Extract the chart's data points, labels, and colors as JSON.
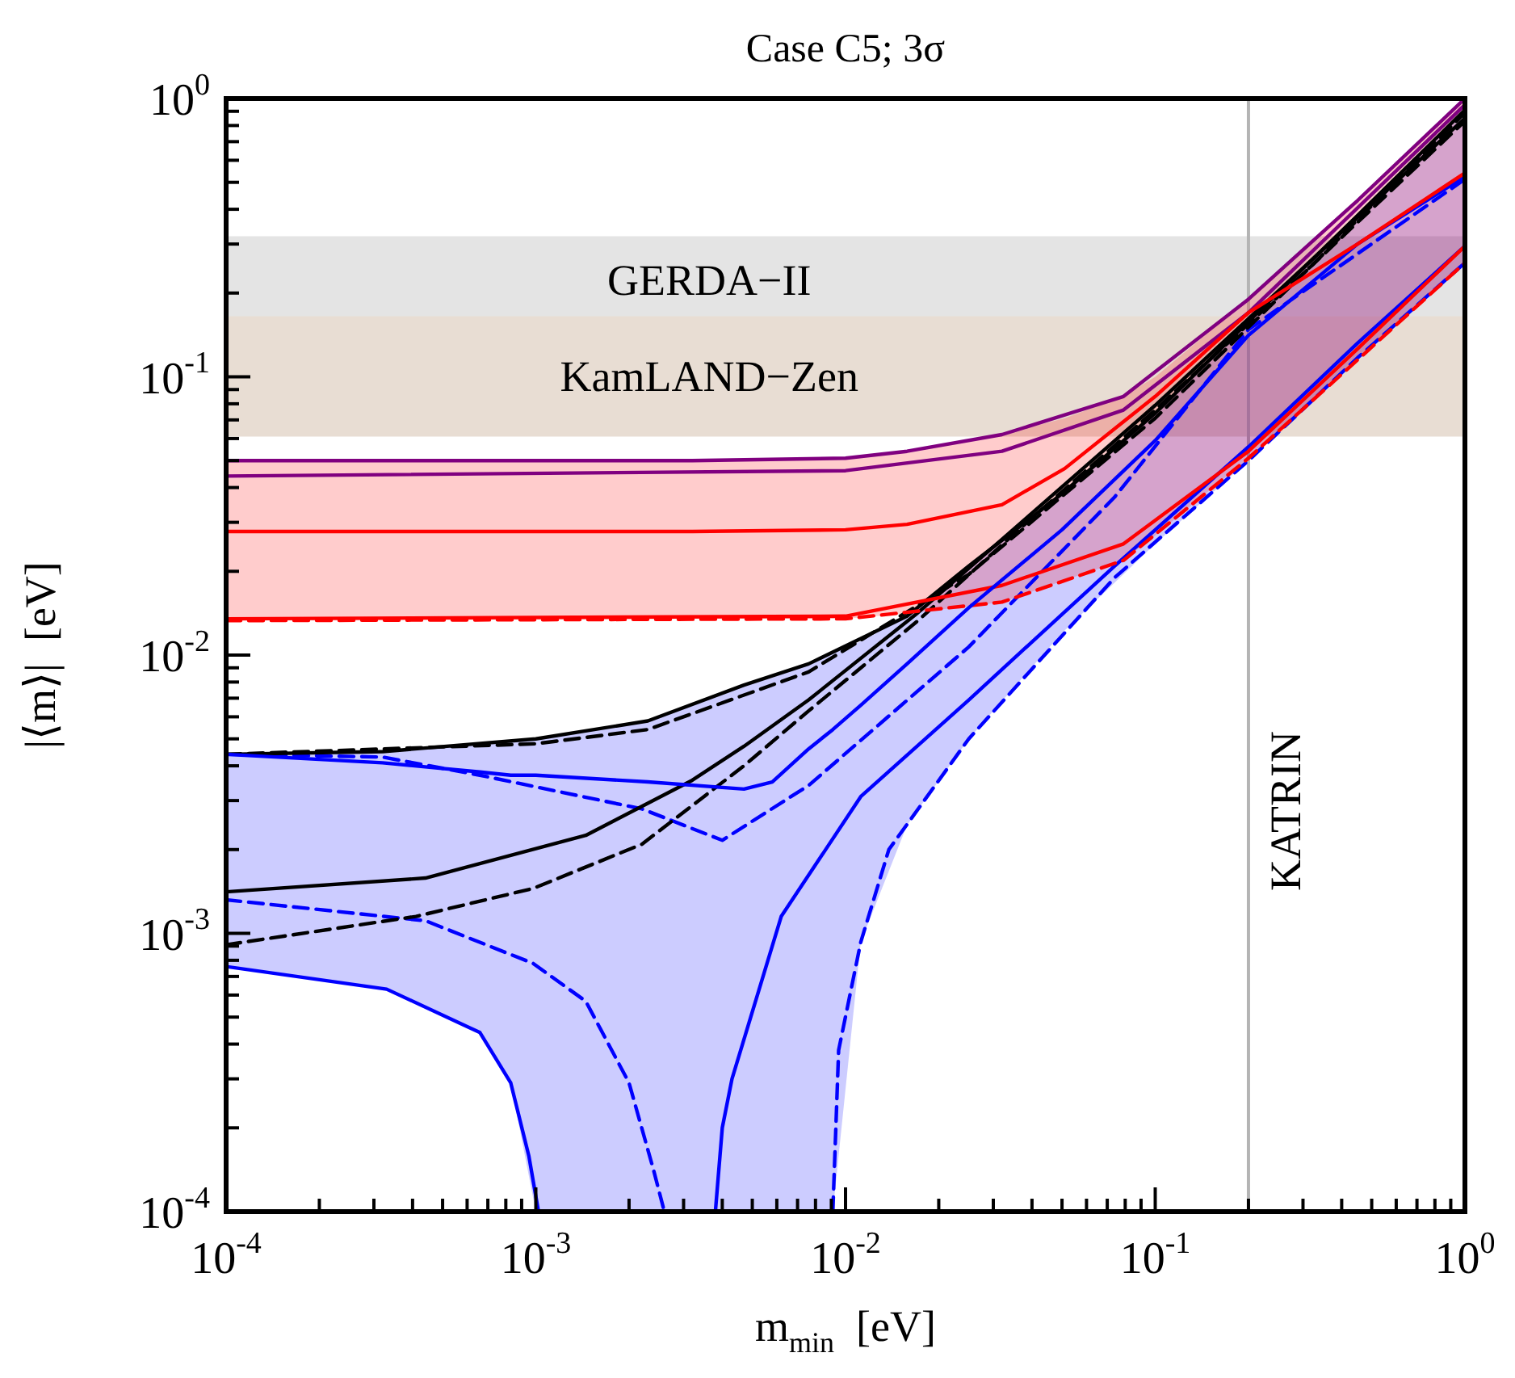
{
  "chart_data": {
    "type": "line",
    "title": "Case C5; 3σ",
    "xlabel": "m$_{min}$  [eV]",
    "ylabel": "|⟨m⟩|  [eV]",
    "log": "xy",
    "grid": false,
    "legend": false,
    "xlim": [
      0.0001,
      1
    ],
    "ylim": [
      0.0001,
      1
    ],
    "xticks": [
      {
        "value": 0.0001,
        "label": "10$^{-4}$"
      },
      {
        "value": 0.0002,
        "label": null
      },
      {
        "value": 0.0003,
        "label": null
      },
      {
        "value": 0.0004,
        "label": null
      },
      {
        "value": 0.0005,
        "label": null
      },
      {
        "value": 0.0006,
        "label": null
      },
      {
        "value": 0.0007,
        "label": null
      },
      {
        "value": 0.0008,
        "label": null
      },
      {
        "value": 0.0009,
        "label": null
      },
      {
        "value": 0.001,
        "label": "10$^{-3}$"
      },
      {
        "value": 0.002,
        "label": null
      },
      {
        "value": 0.003,
        "label": null
      },
      {
        "value": 0.004,
        "label": null
      },
      {
        "value": 0.005,
        "label": null
      },
      {
        "value": 0.006,
        "label": null
      },
      {
        "value": 0.007,
        "label": null
      },
      {
        "value": 0.008,
        "label": null
      },
      {
        "value": 0.009,
        "label": null
      },
      {
        "value": 0.01,
        "label": "10$^{-2}$"
      },
      {
        "value": 0.02,
        "label": null
      },
      {
        "value": 0.03,
        "label": null
      },
      {
        "value": 0.04,
        "label": null
      },
      {
        "value": 0.05,
        "label": null
      },
      {
        "value": 0.06,
        "label": null
      },
      {
        "value": 0.07,
        "label": null
      },
      {
        "value": 0.08,
        "label": null
      },
      {
        "value": 0.09,
        "label": null
      },
      {
        "value": 0.1,
        "label": "10$^{-1}$"
      },
      {
        "value": 0.2,
        "label": null
      },
      {
        "value": 0.3,
        "label": null
      },
      {
        "value": 0.4,
        "label": null
      },
      {
        "value": 0.5,
        "label": null
      },
      {
        "value": 0.6,
        "label": null
      },
      {
        "value": 0.7,
        "label": null
      },
      {
        "value": 0.8,
        "label": null
      },
      {
        "value": 0.9,
        "label": null
      },
      {
        "value": 1,
        "label": "10$^{0}$"
      }
    ],
    "yticks": [
      {
        "value": 0.0001,
        "label": "10$^{-4}$"
      },
      {
        "value": 0.0002,
        "label": null
      },
      {
        "value": 0.0003,
        "label": null
      },
      {
        "value": 0.0004,
        "label": null
      },
      {
        "value": 0.0005,
        "label": null
      },
      {
        "value": 0.0006,
        "label": null
      },
      {
        "value": 0.0007,
        "label": null
      },
      {
        "value": 0.0008,
        "label": null
      },
      {
        "value": 0.0009,
        "label": null
      },
      {
        "value": 0.001,
        "label": "10$^{-3}$"
      },
      {
        "value": 0.002,
        "label": null
      },
      {
        "value": 0.003,
        "label": null
      },
      {
        "value": 0.004,
        "label": null
      },
      {
        "value": 0.005,
        "label": null
      },
      {
        "value": 0.006,
        "label": null
      },
      {
        "value": 0.007,
        "label": null
      },
      {
        "value": 0.008,
        "label": null
      },
      {
        "value": 0.009,
        "label": null
      },
      {
        "value": 0.01,
        "label": "10$^{-2}$"
      },
      {
        "value": 0.02,
        "label": null
      },
      {
        "value": 0.03,
        "label": null
      },
      {
        "value": 0.04,
        "label": null
      },
      {
        "value": 0.05,
        "label": null
      },
      {
        "value": 0.06,
        "label": null
      },
      {
        "value": 0.07,
        "label": null
      },
      {
        "value": 0.08,
        "label": null
      },
      {
        "value": 0.09,
        "label": null
      },
      {
        "value": 0.1,
        "label": "10$^{-1}$"
      },
      {
        "value": 0.2,
        "label": null
      },
      {
        "value": 0.3,
        "label": null
      },
      {
        "value": 0.4,
        "label": null
      },
      {
        "value": 0.5,
        "label": null
      },
      {
        "value": 0.6,
        "label": null
      },
      {
        "value": 0.7,
        "label": null
      },
      {
        "value": 0.8,
        "label": null
      },
      {
        "value": 0.9,
        "label": null
      },
      {
        "value": 1,
        "label": "10$^{0}$"
      }
    ],
    "bands": [
      {
        "axis": "y",
        "from": 0.154,
        "to": 0.32,
        "label": "GERDA−II",
        "color": "#e4e4e4"
      },
      {
        "axis": "y",
        "from": 0.061,
        "to": 0.165,
        "label": "KamLAND−Zen",
        "color": "#e8ddd3"
      }
    ],
    "ref_lines": [
      {
        "axis": "x",
        "value": 0.2,
        "label": "KATRIN",
        "color": "#b4b4b4"
      }
    ],
    "series": [
      {
        "color": "#ff0000",
        "line_style": "solid",
        "x": [
          0.0001,
          0.0032,
          0.01,
          0.0158,
          0.032,
          0.051,
          0.079,
          0.1,
          0.2,
          0.45,
          1
        ],
        "values": [
          0.0278,
          0.0278,
          0.0282,
          0.0295,
          0.0347,
          0.0468,
          0.069,
          0.085,
          0.17,
          0.3,
          0.54
        ],
        "upper": [
          0.05,
          0.05,
          0.051,
          0.054,
          0.062,
          0.071,
          0.085,
          0.1,
          0.19,
          0.43,
          1
        ],
        "lower": [
          0.0133,
          0.0135,
          0.0135,
          0.0141,
          0.0155,
          0.0186,
          0.0219,
          0.0269,
          0.051,
          0.115,
          0.257
        ]
      },
      {
        "color": "#0000ff",
        "line_style": "solid",
        "x": [
          0.0001,
          0.00032,
          0.00066,
          0.00083,
          0.001,
          0.0023,
          0.0047,
          0.0058,
          0.0076,
          0.0091,
          0.0112,
          0.0158,
          0.025,
          0.05,
          0.1,
          0.2,
          0.45,
          1
        ],
        "values": [
          0.0044,
          0.0041,
          0.0038,
          0.0037,
          0.0037,
          0.0035,
          0.0033,
          0.0035,
          0.0046,
          0.0054,
          0.0066,
          0.0093,
          0.0148,
          0.0282,
          0.059,
          0.141,
          0.3,
          0.525
        ],
        "upper": [
          0.0044,
          0.0045,
          0.0048,
          0.0049,
          0.005,
          0.0058,
          0.0078,
          0.0083,
          0.0093,
          0.0102,
          0.0112,
          0.0138,
          0.0209,
          0.038,
          0.074,
          0.158,
          0.38,
          0.91
        ],
        "lower": [
          0.00076,
          0.00063,
          0.00044,
          0.00029,
          0.0001,
          0.0001,
          0.0001,
          0.0001,
          0.0001,
          0.0001,
          0.00093,
          0.00245,
          0.005,
          0.012,
          0.0251,
          0.05,
          0.117,
          0.257
        ]
      },
      {
        "color": "#800080",
        "line_style": "solid",
        "x": [
          0.0001,
          0.0032,
          0.01,
          0.0158,
          0.032,
          0.079,
          0.2,
          0.45,
          1
        ],
        "values": [
          0.05,
          0.05,
          0.051,
          0.054,
          0.062,
          0.085,
          0.19,
          0.43,
          1
        ]
      },
      {
        "color": "#800080",
        "line_style": "solid",
        "x": [
          0.0001,
          0.01,
          0.032,
          0.079,
          0.2,
          1
        ],
        "values": [
          0.044,
          0.046,
          0.054,
          0.076,
          0.17,
          0.95
        ]
      },
      {
        "color": "#ff0000",
        "line_style": "solid",
        "x": [
          0.0001,
          0.01,
          0.032,
          0.079,
          0.2,
          0.45,
          1
        ],
        "values": [
          0.0135,
          0.0138,
          0.0178,
          0.0251,
          0.054,
          0.126,
          0.295
        ]
      },
      {
        "color": "#ff0000",
        "line_style": "dashed",
        "x": [
          0.0001,
          0.01,
          0.032,
          0.079,
          0.2,
          0.45,
          1
        ],
        "values": [
          0.0133,
          0.0135,
          0.0155,
          0.0219,
          0.051,
          0.115,
          0.257
        ]
      },
      {
        "color": "#000000",
        "line_style": "solid",
        "x": [
          0.0001,
          0.00032,
          0.001,
          0.0023,
          0.0047,
          0.0076,
          0.0158,
          0.025,
          0.05,
          0.1,
          0.2,
          0.45,
          1
        ],
        "values": [
          0.0044,
          0.0045,
          0.005,
          0.0058,
          0.0078,
          0.0093,
          0.0138,
          0.0209,
          0.038,
          0.074,
          0.158,
          0.38,
          0.91
        ]
      },
      {
        "color": "#000000",
        "line_style": "dashed",
        "x": [
          0.0001,
          0.001,
          0.0023,
          0.0076,
          0.025,
          0.1,
          0.32,
          1
        ],
        "values": [
          0.0044,
          0.0048,
          0.0054,
          0.0087,
          0.0195,
          0.071,
          0.251,
          0.89
        ]
      },
      {
        "color": "#000000",
        "line_style": "solid",
        "x": [
          0.0001,
          0.00044,
          0.00145,
          0.0032,
          0.0047,
          0.0076,
          0.017,
          0.037,
          0.1,
          0.32,
          1
        ],
        "values": [
          0.00141,
          0.00158,
          0.00225,
          0.00355,
          0.0047,
          0.0069,
          0.0141,
          0.03,
          0.079,
          0.263,
          0.85
        ]
      },
      {
        "color": "#000000",
        "line_style": "dashed",
        "x": [
          0.0001,
          0.00041,
          0.00098,
          0.0022,
          0.0047,
          0.0076,
          0.017,
          0.037,
          0.1,
          0.32,
          1
        ],
        "values": [
          0.00091,
          0.00115,
          0.00145,
          0.00209,
          0.004,
          0.0063,
          0.0132,
          0.0288,
          0.076,
          0.251,
          0.83
        ]
      },
      {
        "color": "#0000ff",
        "line_style": "dashed",
        "x": [
          0.0001,
          0.00032,
          0.00066,
          0.0022,
          0.004,
          0.0076,
          0.025,
          0.074,
          0.2,
          1
        ],
        "values": [
          0.0044,
          0.0043,
          0.0037,
          0.0028,
          0.00216,
          0.0034,
          0.0107,
          0.037,
          0.148,
          0.513
        ]
      },
      {
        "color": "#0000ff",
        "line_style": "solid",
        "x": [
          0.0001,
          0.00033,
          0.00066,
          0.00083,
          0.00095,
          0.00102
        ],
        "values": [
          0.00076,
          0.00063,
          0.00044,
          0.00029,
          0.000158,
          0.0001
        ]
      },
      {
        "color": "#0000ff",
        "line_style": "dashed",
        "x": [
          0.0001,
          0.00044,
          0.00098,
          0.00145,
          0.002,
          0.0024,
          0.0026
        ],
        "values": [
          0.00132,
          0.00111,
          0.00078,
          0.00057,
          0.00029,
          0.000141,
          0.0001
        ]
      },
      {
        "color": "#0000ff",
        "line_style": "solid",
        "x": [
          0.0038,
          0.004,
          0.0043,
          0.0062,
          0.0112,
          0.025,
          0.074,
          0.2,
          0.45,
          1
        ],
        "values": [
          0.0001,
          0.0002,
          0.0003,
          0.00115,
          0.0031,
          0.0069,
          0.0209,
          0.056,
          0.132,
          0.295
        ]
      },
      {
        "color": "#0000ff",
        "line_style": "dashed",
        "x": [
          0.0091,
          0.0095,
          0.0112,
          0.0138,
          0.025,
          0.074,
          0.2,
          0.45,
          1
        ],
        "values": [
          0.0001,
          0.00038,
          0.00093,
          0.002,
          0.005,
          0.019,
          0.05,
          0.117,
          0.257
        ]
      }
    ]
  }
}
